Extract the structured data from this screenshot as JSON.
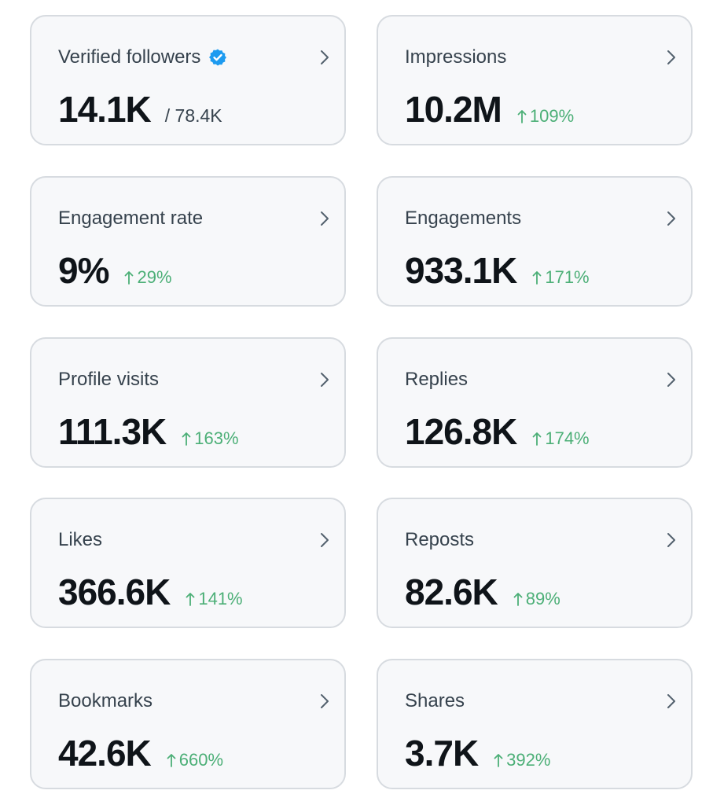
{
  "colors": {
    "card_bg": "#f7f8fa",
    "card_border": "#d7dbe0",
    "value": "#0f1419",
    "label": "#36424d",
    "positive": "#4caf77",
    "verified": "#1d9bf0"
  },
  "metrics": [
    {
      "label": "Verified followers",
      "value": "14.1K",
      "total": "/ 78.4K",
      "badge_icon": "verified-badge-icon"
    },
    {
      "label": "Impressions",
      "value": "10.2M",
      "change": "109%"
    },
    {
      "label": "Engagement rate",
      "value": "9%",
      "change": "29%"
    },
    {
      "label": "Engagements",
      "value": "933.1K",
      "change": "171%"
    },
    {
      "label": "Profile visits",
      "value": "111.3K",
      "change": "163%"
    },
    {
      "label": "Replies",
      "value": "126.8K",
      "change": "174%"
    },
    {
      "label": "Likes",
      "value": "366.6K",
      "change": "141%"
    },
    {
      "label": "Reposts",
      "value": "82.6K",
      "change": "89%"
    },
    {
      "label": "Bookmarks",
      "value": "42.6K",
      "change": "660%"
    },
    {
      "label": "Shares",
      "value": "3.7K",
      "change": "392%"
    }
  ]
}
